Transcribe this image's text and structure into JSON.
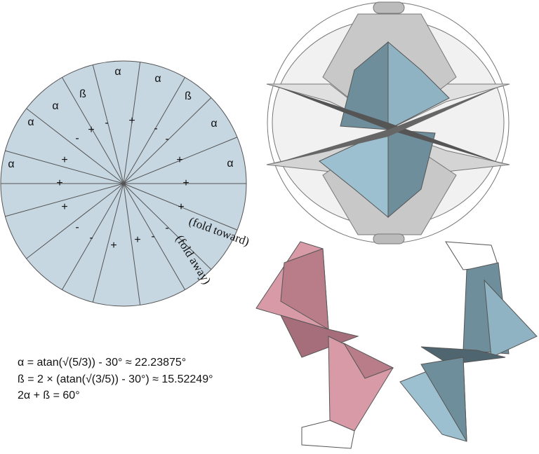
{
  "crease_pattern": {
    "sector_labels": [
      "α",
      "α",
      "ß",
      "α",
      "α",
      "ß",
      "α",
      "α",
      "α"
    ],
    "signs": [
      "+",
      "-",
      "-",
      "+",
      "-",
      "-",
      "+",
      "+",
      "+",
      "+",
      "+",
      "+",
      "-",
      "-",
      "-",
      "+",
      "+",
      "-"
    ],
    "fold_toward": "(fold toward)",
    "fold_away": "(fold away)"
  },
  "formulas": [
    "α = atan(√(5/3)) - 30° ≈ 22.23875°",
    "ß = 2 × (atan(√(3/5)) - 30°) ≈ 15.52249°",
    "2α + ß = 60°"
  ]
}
